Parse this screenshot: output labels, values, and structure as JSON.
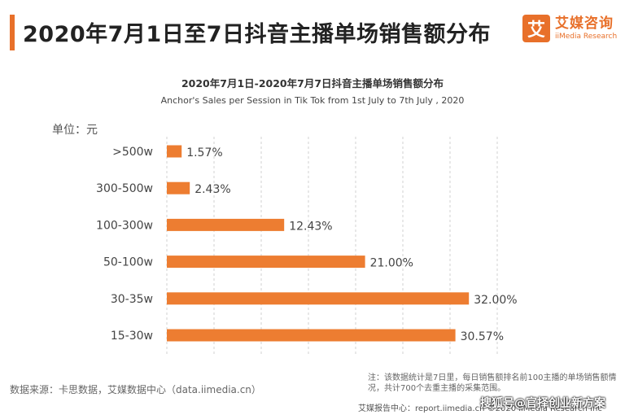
{
  "header": {
    "title": "2020年7月1日至7日抖音主播单场销售额分布",
    "logo_mark": "艾",
    "logo_cn": "艾媒咨询",
    "logo_en": "iiMedia Research"
  },
  "colors": {
    "accent": "#e8702a",
    "bar": "#ed7d31",
    "logo": "#e8702a"
  },
  "chart_data": {
    "type": "bar",
    "orientation": "horizontal",
    "title": "2020年7月1日-2020年7月7日抖音主播单场销售额分布",
    "subtitle": "Anchor's Sales per Session in Tik Tok from 1st July to 7th July , 2020",
    "unit": "单位：元",
    "categories": [
      ">500w",
      "300-500w",
      "100-300w",
      "50-100w",
      "30-35w",
      "15-30w"
    ],
    "values": [
      1.57,
      2.43,
      12.43,
      21.0,
      32.0,
      30.57
    ],
    "value_labels": [
      "1.57%",
      "2.43%",
      "12.43%",
      "21.00%",
      "32.00%",
      "30.57%"
    ],
    "xlim": [
      0,
      35
    ],
    "grid": "vertical dashed"
  },
  "footer": {
    "source": "数据来源：卡思数据，艾媒数据中心（data.iimedia.cn）",
    "note": "注：该数据统计是7日里，每日销售额排名前100主播的单场销售额情况，共计700个去重主播的采集范围。",
    "bar_text": "艾媒报告中心：report.iimedia.cn ©2020 iiMedia Research Inc",
    "watermark": "搜狐号@官择创业新方案"
  }
}
